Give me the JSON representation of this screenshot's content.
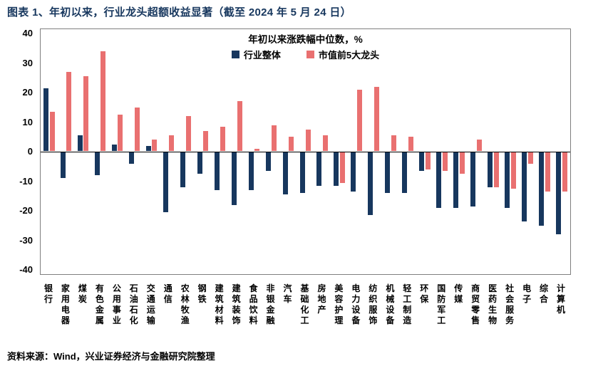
{
  "title": "图表 1、年初以来，行业龙头超额收益显著（截至 2024 年 5 月 24 日）",
  "source_label": "资料来源：",
  "source_text": "Wind，兴业证券经济与金融研究院整理",
  "colors": {
    "title": "#17375E",
    "industry_bar": "#17375E",
    "top5_bar": "#E97070",
    "axis": "#000000",
    "frame": "#7f7f7f"
  },
  "chart_data": {
    "type": "bar",
    "title": "年初以来涨跌幅中位数，%",
    "xlabel": "",
    "ylabel": "",
    "ylim": [
      -40,
      40
    ],
    "yticks": [
      40,
      30,
      20,
      10,
      0,
      -10,
      -20,
      -30,
      -40
    ],
    "grid": false,
    "legend_position": "top-center",
    "categories": [
      "银行",
      "家用电器",
      "煤炭",
      "有色金属",
      "公用事业",
      "石油石化",
      "交通运输",
      "通信",
      "农林牧渔",
      "钢铁",
      "建筑材料",
      "建筑装饰",
      "食品饮料",
      "非银金融",
      "汽车",
      "基础化工",
      "房地产",
      "美容护理",
      "电力设备",
      "纺织服饰",
      "机械设备",
      "轻工制造",
      "环保",
      "国防军工",
      "传媒",
      "商贸零售",
      "医药生物",
      "社会服务",
      "电子",
      "综合",
      "计算机"
    ],
    "series": [
      {
        "name": "行业整体",
        "color": "#17375E",
        "values": [
          21.5,
          -9,
          5.5,
          -8,
          2.5,
          -4,
          2,
          -20.5,
          -12,
          -7.5,
          -13,
          -18,
          -13,
          -6.5,
          -14.5,
          -14,
          -11.5,
          -11.5,
          -13.5,
          -21.5,
          -14,
          -14,
          -6.5,
          -19,
          -19,
          -18.5,
          -12,
          -19,
          -23.5,
          -25,
          -28
        ]
      },
      {
        "name": "市值前5大龙头",
        "color": "#E97070",
        "values": [
          13.5,
          27,
          25.5,
          34,
          12.5,
          15,
          4,
          5.5,
          12,
          7,
          8.5,
          17,
          1,
          9,
          5,
          7.5,
          5.5,
          -10.5,
          21,
          22,
          5.5,
          5,
          -6,
          -6.5,
          -7.5,
          4,
          -12,
          -12.5,
          -4,
          -13.5,
          -13.5
        ]
      }
    ]
  }
}
